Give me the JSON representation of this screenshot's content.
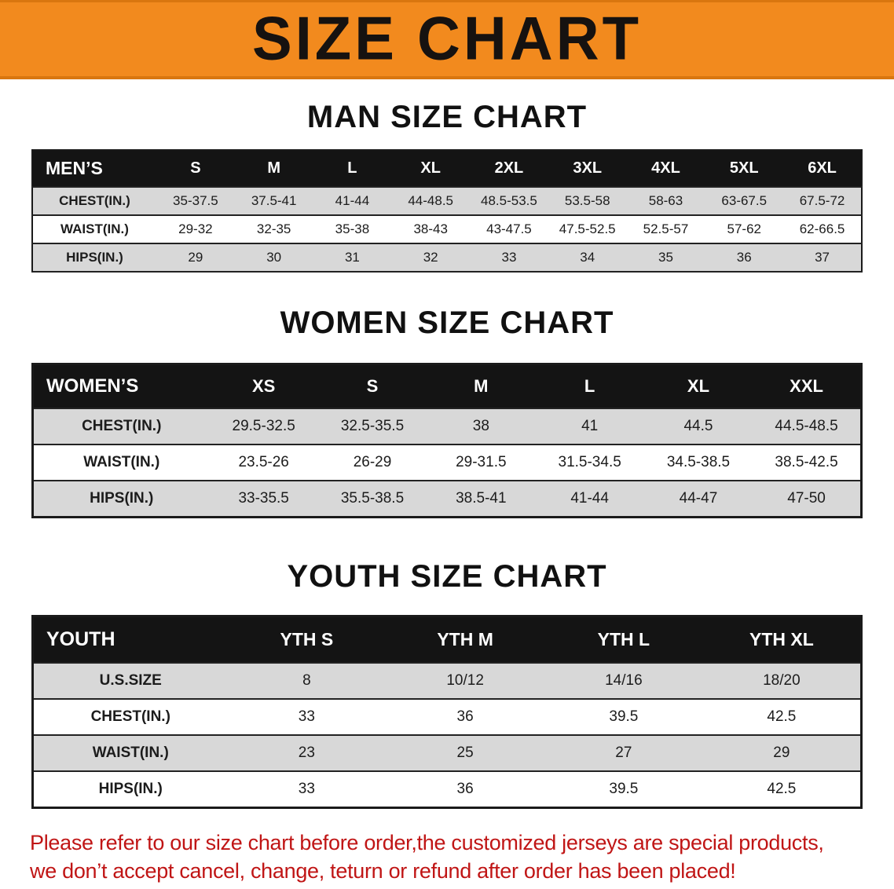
{
  "banner": {
    "title": "SIZE CHART"
  },
  "sections": [
    {
      "id": "men",
      "heading": "MAN SIZE CHART",
      "table": {
        "label_header": "MEN’S",
        "columns": [
          "S",
          "M",
          "L",
          "XL",
          "2XL",
          "3XL",
          "4XL",
          "5XL",
          "6XL"
        ],
        "rows": [
          {
            "label": "CHEST(IN.)",
            "values": [
              "35-37.5",
              "37.5-41",
              "41-44",
              "44-48.5",
              "48.5-53.5",
              "53.5-58",
              "58-63",
              "63-67.5",
              "67.5-72"
            ]
          },
          {
            "label": "WAIST(IN.)",
            "values": [
              "29-32",
              "32-35",
              "35-38",
              "38-43",
              "43-47.5",
              "47.5-52.5",
              "52.5-57",
              "57-62",
              "62-66.5"
            ]
          },
          {
            "label": "HIPS(IN.)",
            "values": [
              "29",
              "30",
              "31",
              "32",
              "33",
              "34",
              "35",
              "36",
              "37"
            ]
          }
        ]
      }
    },
    {
      "id": "women",
      "heading": "WOMEN SIZE CHART",
      "table": {
        "label_header": "WOMEN’S",
        "columns": [
          "XS",
          "S",
          "M",
          "L",
          "XL",
          "XXL"
        ],
        "rows": [
          {
            "label": "CHEST(IN.)",
            "values": [
              "29.5-32.5",
              "32.5-35.5",
              "38",
              "41",
              "44.5",
              "44.5-48.5"
            ]
          },
          {
            "label": "WAIST(IN.)",
            "values": [
              "23.5-26",
              "26-29",
              "29-31.5",
              "31.5-34.5",
              "34.5-38.5",
              "38.5-42.5"
            ]
          },
          {
            "label": "HIPS(IN.)",
            "values": [
              "33-35.5",
              "35.5-38.5",
              "38.5-41",
              "41-44",
              "44-47",
              "47-50"
            ]
          }
        ]
      }
    },
    {
      "id": "youth",
      "heading": "YOUTH SIZE CHART",
      "table": {
        "label_header": "YOUTH",
        "columns": [
          "YTH S",
          "YTH M",
          "YTH L",
          "YTH XL"
        ],
        "rows": [
          {
            "label": "U.S.SIZE",
            "values": [
              "8",
              "10/12",
              "14/16",
              "18/20"
            ]
          },
          {
            "label": "CHEST(IN.)",
            "values": [
              "33",
              "36",
              "39.5",
              "42.5"
            ]
          },
          {
            "label": "WAIST(IN.)",
            "values": [
              "23",
              "25",
              "27",
              "29"
            ]
          },
          {
            "label": "HIPS(IN.)",
            "values": [
              "33",
              "36",
              "39.5",
              "42.5"
            ]
          }
        ]
      }
    }
  ],
  "note": {
    "line1": "Please refer to our size chart before order,the customized jerseys are special products,",
    "line2": "we don’t accept cancel, change, teturn or refund after order has been placed!"
  },
  "colors": {
    "banner_bg": "#f28a1e",
    "table_header_bg": "#141414",
    "row_shaded_bg": "#d8d8d8",
    "note_text": "#c01515"
  }
}
